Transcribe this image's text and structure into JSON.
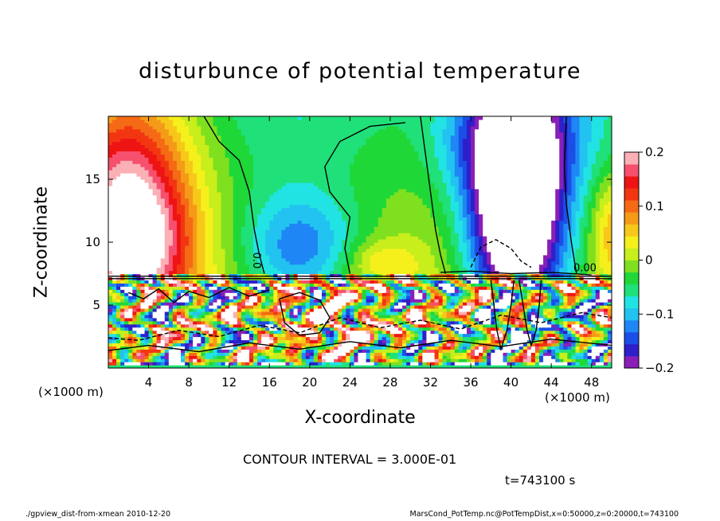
{
  "chart_data": {
    "type": "heatmap",
    "title": "disturbunce of potential temperature",
    "xlabel": "X-coordinate",
    "ylabel": "Z-coordinate",
    "x_unit_label": "(×1000 m)",
    "y_unit_label": "(×1000 m)",
    "xlim": [
      0,
      50
    ],
    "ylim": [
      0,
      20
    ],
    "x_ticks": [
      4,
      8,
      12,
      16,
      20,
      24,
      28,
      32,
      36,
      40,
      44,
      48
    ],
    "y_ticks": [
      5,
      10,
      15
    ],
    "colorbar": {
      "range": [
        -0.2,
        0.2
      ],
      "ticks": [
        "0.2",
        "0.1",
        "0",
        "−0.1",
        "−0.2"
      ],
      "tick_values": [
        0.2,
        0.1,
        0,
        -0.1,
        -0.2
      ],
      "colors": [
        "#8a1fb8",
        "#2e1fc9",
        "#1a4ee6",
        "#1f86f5",
        "#22c3f0",
        "#22e3e3",
        "#20e07a",
        "#1fd838",
        "#7fe01f",
        "#c8ee1c",
        "#f5f01c",
        "#f7c81a",
        "#f59a18",
        "#f56a15",
        "#f23612",
        "#ee1414",
        "#f6506e",
        "#fbb0b6"
      ]
    },
    "contour_interval_text": "CONTOUR INTERVAL = 3.000E-01",
    "contour_labels": [
      "0.0",
      "0.00"
    ],
    "annotations": {
      "time": "t=743100 s",
      "footer_left": "./gpview_dist-from-xmean   2010-12-20",
      "footer_right": "MarsCond_PotTemp.nc@PotTempDist,x=0:50000,z=0:20000,t=743100"
    }
  }
}
